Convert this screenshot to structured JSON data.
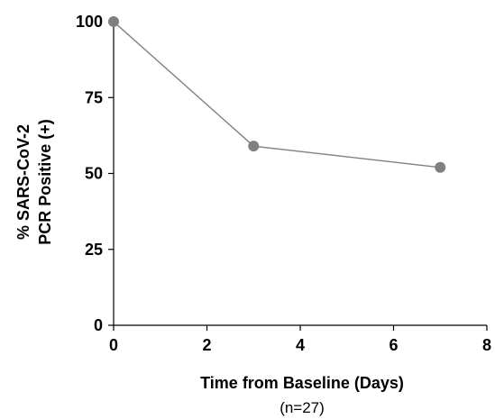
{
  "chart_data": {
    "type": "line",
    "title": "",
    "xlabel": "Time from Baseline (Days)",
    "xlabel_note": "(n=27)",
    "ylabel_lines": [
      "% SARS-CoV-2",
      "PCR Positive (+)"
    ],
    "xlim": [
      0,
      8
    ],
    "ylim": [
      0,
      100
    ],
    "x_ticks": [
      "0",
      "2",
      "4",
      "6",
      "8"
    ],
    "y_ticks": [
      "0",
      "25",
      "50",
      "75",
      "100"
    ],
    "grid": false,
    "legend": "none",
    "series": [
      {
        "x": [
          0,
          3,
          7
        ],
        "y": [
          100,
          59,
          52
        ],
        "color": "#808080",
        "marker_color": "#808080"
      }
    ]
  }
}
